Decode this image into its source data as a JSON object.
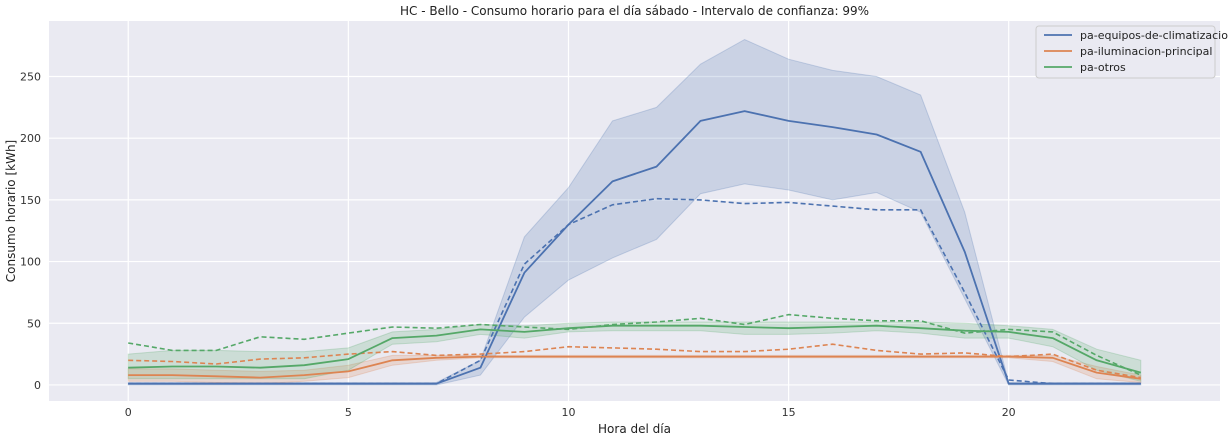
{
  "chart_data": {
    "type": "line",
    "title": "HC - Bello - Consumo horario para el día sábado - Intervalo de confianza: 99%",
    "xlabel": "Hora del día",
    "ylabel": "Consumo horario [kWh]",
    "xlim": [
      -1.8,
      24.8
    ],
    "ylim": [
      -13,
      295
    ],
    "xticks": [
      0,
      5,
      10,
      15,
      20
    ],
    "yticks": [
      0,
      50,
      100,
      150,
      200,
      250
    ],
    "grid": true,
    "legend_position": "top-right",
    "x": [
      0,
      1,
      2,
      3,
      4,
      5,
      6,
      7,
      8,
      9,
      10,
      11,
      12,
      13,
      14,
      15,
      16,
      17,
      18,
      19,
      20,
      21,
      22,
      23
    ],
    "series": [
      {
        "name": "pa-equipos-de-climatizacion",
        "color": "#4c72b0",
        "mean": [
          1,
          1,
          1,
          1,
          1,
          1,
          1,
          1,
          14,
          91,
          130,
          165,
          177,
          214,
          222,
          214,
          209,
          203,
          189,
          108,
          1,
          1,
          1,
          1
        ],
        "upper": [
          2,
          2,
          2,
          2,
          2,
          2,
          2,
          2,
          20,
          120,
          160,
          214,
          225,
          260,
          280,
          264,
          255,
          250,
          235,
          140,
          2,
          2,
          2,
          2
        ],
        "lower": [
          0,
          0,
          0,
          0,
          0,
          0,
          0,
          0,
          8,
          55,
          85,
          103,
          118,
          155,
          163,
          158,
          150,
          156,
          140,
          70,
          0,
          0,
          0,
          0
        ],
        "dashed": [
          1,
          1,
          1,
          1,
          1,
          1,
          1,
          1,
          20,
          98,
          130,
          146,
          151,
          150,
          147,
          148,
          145,
          142,
          142,
          75,
          4,
          1,
          1,
          1
        ]
      },
      {
        "name": "pa-iluminacion-principal",
        "color": "#dd8452",
        "mean": [
          8,
          8,
          7,
          6,
          8,
          11,
          20,
          22,
          23,
          23,
          23,
          23,
          23,
          23,
          23,
          23,
          23,
          23,
          23,
          23,
          23,
          22,
          10,
          5
        ],
        "upper": [
          13,
          13,
          12,
          11,
          12,
          16,
          24,
          24,
          24,
          24,
          24,
          24,
          24,
          24,
          24,
          24,
          24,
          24,
          24,
          24,
          24,
          24,
          15,
          8
        ],
        "lower": [
          3,
          3,
          2,
          1,
          3,
          6,
          16,
          20,
          22,
          22,
          22,
          22,
          22,
          22,
          22,
          22,
          22,
          22,
          22,
          22,
          22,
          19,
          5,
          2
        ],
        "dashed": [
          20,
          19,
          17,
          21,
          22,
          25,
          27,
          24,
          25,
          27,
          31,
          30,
          29,
          27,
          27,
          29,
          33,
          28,
          25,
          26,
          23,
          25,
          12,
          6
        ]
      },
      {
        "name": "pa-otros",
        "color": "#55a868",
        "mean": [
          14,
          15,
          15,
          14,
          16,
          21,
          38,
          40,
          45,
          43,
          46,
          48,
          48,
          48,
          47,
          46,
          47,
          48,
          46,
          44,
          43,
          38,
          20,
          10
        ],
        "upper": [
          25,
          28,
          28,
          27,
          27,
          30,
          43,
          45,
          49,
          48,
          50,
          51,
          51,
          51,
          51,
          51,
          51,
          51,
          51,
          50,
          48,
          45,
          29,
          20
        ],
        "lower": [
          5,
          5,
          5,
          5,
          5,
          12,
          33,
          35,
          41,
          38,
          43,
          44,
          44,
          44,
          41,
          41,
          42,
          44,
          42,
          38,
          38,
          31,
          12,
          3
        ],
        "dashed": [
          34,
          28,
          28,
          39,
          37,
          42,
          47,
          46,
          49,
          47,
          45,
          49,
          51,
          54,
          49,
          57,
          54,
          52,
          52,
          42,
          45,
          43,
          24,
          8
        ]
      }
    ]
  }
}
